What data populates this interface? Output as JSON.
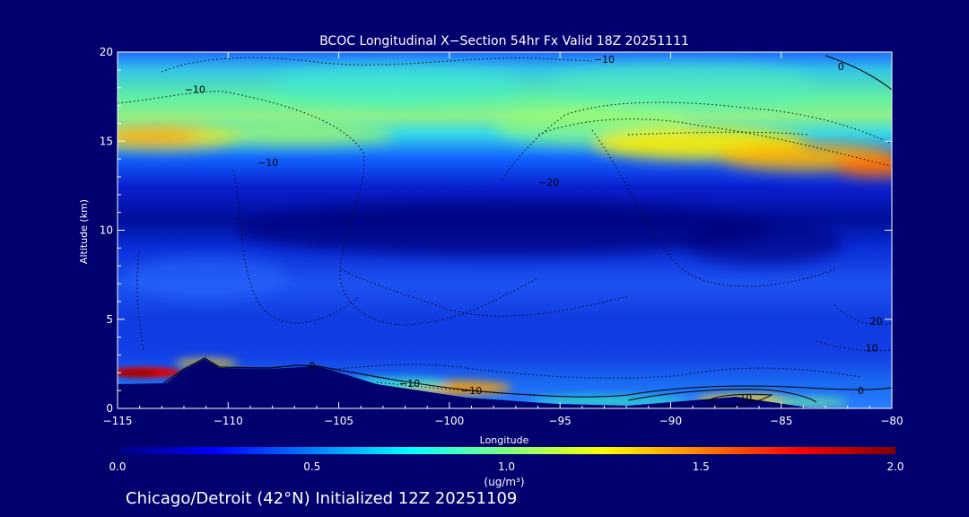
{
  "chart_data": {
    "type": "heatmap",
    "title": "BCOC Longitudinal X−Section 54hr  Fx Valid 18Z 20251111",
    "xlabel": "Longitude",
    "ylabel": "Altitude (km)",
    "xlim": [
      -115,
      -80
    ],
    "ylim": [
      0,
      20
    ],
    "x_ticks": [
      -115,
      -110,
      -105,
      -100,
      -95,
      -90,
      -85,
      -80
    ],
    "x_tick_labels": [
      "−115",
      "−110",
      "−105",
      "−100",
      "−95",
      "−90",
      "−85",
      "−80"
    ],
    "y_ticks": [
      0,
      5,
      10,
      15,
      20
    ],
    "y_tick_labels": [
      "0",
      "5",
      "10",
      "15",
      "20"
    ],
    "colorbar": {
      "min": 0.0,
      "max": 2.0,
      "ticks": [
        0.0,
        0.5,
        1.0,
        1.5,
        2.0
      ],
      "tick_labels": [
        "0.0",
        "0.5",
        "1.0",
        "1.5",
        "2.0"
      ],
      "label": "(ug/m³)",
      "colormap": [
        "#00007f",
        "#0000ff",
        "#007fff",
        "#00ffff",
        "#7fff7f",
        "#ffff00",
        "#ff7f00",
        "#ff0000",
        "#7f0000"
      ]
    },
    "concentration_field": [
      {
        "lon": -115,
        "alt": 15.2,
        "value": 1.25
      },
      {
        "lon": -112,
        "alt": 15.1,
        "value": 1.3
      },
      {
        "lon": -108,
        "alt": 15.0,
        "value": 1.0
      },
      {
        "lon": -104,
        "alt": 15.3,
        "value": 0.8
      },
      {
        "lon": -100,
        "alt": 15.6,
        "value": 0.75
      },
      {
        "lon": -95,
        "alt": 15.5,
        "value": 0.9
      },
      {
        "lon": -90,
        "alt": 15.0,
        "value": 1.25
      },
      {
        "lon": -85,
        "alt": 14.3,
        "value": 1.45
      },
      {
        "lon": -80,
        "alt": 13.5,
        "value": 1.65
      },
      {
        "lon": -100,
        "alt": 18.5,
        "value": 0.65
      },
      {
        "lon": -90,
        "alt": 18.5,
        "value": 0.6
      },
      {
        "lon": -113,
        "alt": 2.0,
        "value": 1.9
      },
      {
        "lon": -111,
        "alt": 2.7,
        "value": 1.2
      },
      {
        "lon": -99.5,
        "alt": 1.4,
        "value": 1.5
      },
      {
        "lon": -93,
        "alt": 0.6,
        "value": 1.0
      },
      {
        "lon": -87,
        "alt": 0.4,
        "value": 1.3
      },
      {
        "lon": -84,
        "alt": 0.5,
        "value": 1.0
      },
      {
        "lon": -108,
        "alt": 7.5,
        "value": 0.25
      },
      {
        "lon": -95,
        "alt": 7.0,
        "value": 0.2
      },
      {
        "lon": -85,
        "alt": 8.0,
        "value": 0.2
      },
      {
        "lon": -100,
        "alt": 11.0,
        "value": 0.05
      }
    ],
    "contour_labels": [
      {
        "text": "−10",
        "lon": -111.5,
        "alt": 17.9
      },
      {
        "text": "−10",
        "lon": -93.0,
        "alt": 19.6
      },
      {
        "text": "0",
        "lon": -82.3,
        "alt": 19.2
      },
      {
        "text": "−10",
        "lon": -108.2,
        "alt": 13.8
      },
      {
        "text": "−20",
        "lon": -95.5,
        "alt": 12.7
      },
      {
        "text": "0",
        "lon": -106.2,
        "alt": 2.4
      },
      {
        "text": "−10",
        "lon": -101.8,
        "alt": 1.4
      },
      {
        "text": "−10",
        "lon": -99.0,
        "alt": 1.0
      },
      {
        "text": "10",
        "lon": -86.6,
        "alt": 0.6
      },
      {
        "text": "0",
        "lon": -81.4,
        "alt": 1.0
      },
      {
        "text": "10",
        "lon": -80.9,
        "alt": 3.4
      },
      {
        "text": "20",
        "lon": -80.7,
        "alt": 4.9
      }
    ],
    "footer": "Chicago/Detroit (42°N) Initialized 12Z 20251109"
  }
}
